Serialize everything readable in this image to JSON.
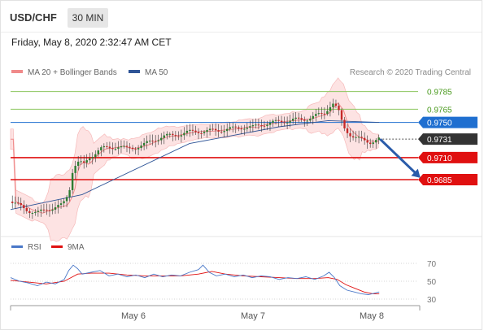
{
  "header": {
    "symbol": "USD/CHF",
    "timeframe": "30 MIN"
  },
  "datetime": "Friday, May 8, 2020 2:32:47 AM CET",
  "legend": [
    {
      "label": "MA 20 + Bollinger Bands",
      "color": "#f08a8a"
    },
    {
      "label": "MA 50",
      "color": "#2f5597"
    }
  ],
  "credit": "Research © 2020 Trading Central",
  "colors": {
    "resistance": "#8cc65e",
    "pivot": "#1f6fd0",
    "support": "#e01010",
    "last": "#333333",
    "arrow": "#2a5caa",
    "candle_up": "#2e7d32",
    "candle_down": "#c62828",
    "rsi": "#4a78c8",
    "rsi_ma": "#e01010"
  },
  "chart_data": [
    {
      "type": "candlestick",
      "series": [
        {
          "name": "USD/CHF"
        },
        {
          "name": "MA 20 + Bollinger Bands"
        },
        {
          "name": "MA 50"
        }
      ],
      "x_tick_labels": [
        "May 6",
        "May 7",
        "May 8"
      ],
      "ylim": [
        0.9637,
        0.9793
      ],
      "levels": [
        {
          "label": "0.9785",
          "value": 0.9785,
          "kind": "resistance"
        },
        {
          "label": "0.9765",
          "value": 0.9765,
          "kind": "resistance"
        },
        {
          "label": "0.9750",
          "value": 0.975,
          "kind": "pivot"
        },
        {
          "label": "0.9731",
          "value": 0.9731,
          "kind": "last"
        },
        {
          "label": "0.9710",
          "value": 0.971,
          "kind": "support"
        },
        {
          "label": "0.9685",
          "value": 0.9685,
          "kind": "support"
        }
      ],
      "price_path": [
        [
          0,
          0.966
        ],
        [
          10,
          0.9655
        ],
        [
          20,
          0.965
        ],
        [
          30,
          0.9647
        ],
        [
          40,
          0.9651
        ],
        [
          50,
          0.9654
        ],
        [
          58,
          0.9656
        ],
        [
          62,
          0.9663
        ],
        [
          66,
          0.9675
        ],
        [
          70,
          0.97
        ],
        [
          76,
          0.9705
        ],
        [
          82,
          0.9702
        ],
        [
          88,
          0.971
        ],
        [
          95,
          0.9716
        ],
        [
          100,
          0.972
        ],
        [
          110,
          0.9721
        ],
        [
          120,
          0.9723
        ],
        [
          130,
          0.972
        ],
        [
          140,
          0.9722
        ],
        [
          150,
          0.9725
        ],
        [
          160,
          0.973
        ],
        [
          170,
          0.9734
        ],
        [
          180,
          0.9735
        ],
        [
          190,
          0.9737
        ],
        [
          200,
          0.9739
        ],
        [
          210,
          0.974
        ],
        [
          220,
          0.974
        ],
        [
          230,
          0.9741
        ],
        [
          240,
          0.9742
        ],
        [
          250,
          0.9743
        ],
        [
          260,
          0.9745
        ],
        [
          270,
          0.9744
        ],
        [
          280,
          0.9748
        ],
        [
          290,
          0.9749
        ],
        [
          300,
          0.9751
        ],
        [
          310,
          0.9752
        ],
        [
          320,
          0.9753
        ],
        [
          330,
          0.9754
        ],
        [
          340,
          0.9757
        ],
        [
          350,
          0.976
        ],
        [
          356,
          0.9768
        ],
        [
          360,
          0.9772
        ],
        [
          366,
          0.9764
        ],
        [
          372,
          0.9745
        ],
        [
          378,
          0.9738
        ],
        [
          384,
          0.9733
        ],
        [
          390,
          0.9731
        ],
        [
          396,
          0.9729
        ],
        [
          402,
          0.9728
        ],
        [
          408,
          0.973
        ],
        [
          412,
          0.9731
        ]
      ],
      "ma50_path": [
        [
          0,
          0.9651
        ],
        [
          80,
          0.9668
        ],
        [
          200,
          0.9726
        ],
        [
          300,
          0.9745
        ],
        [
          355,
          0.9752
        ],
        [
          412,
          0.975
        ]
      ],
      "forecast_arrow": {
        "from": [
          413,
          0.9731
        ],
        "to": [
          458,
          0.9687
        ]
      }
    },
    {
      "type": "line",
      "series": [
        {
          "name": "RSI",
          "color": "#4a78c8"
        },
        {
          "name": "9MA",
          "color": "#e01010"
        }
      ],
      "y_ticks": [
        70,
        50,
        30
      ],
      "ylim": [
        20,
        80
      ],
      "rsi_path": [
        [
          0,
          54
        ],
        [
          10,
          50
        ],
        [
          20,
          48
        ],
        [
          30,
          45
        ],
        [
          40,
          49
        ],
        [
          50,
          47
        ],
        [
          60,
          52
        ],
        [
          65,
          62
        ],
        [
          70,
          68
        ],
        [
          75,
          64
        ],
        [
          80,
          58
        ],
        [
          90,
          60
        ],
        [
          100,
          62
        ],
        [
          110,
          56
        ],
        [
          120,
          58
        ],
        [
          130,
          55
        ],
        [
          140,
          57
        ],
        [
          150,
          54
        ],
        [
          160,
          58
        ],
        [
          170,
          55
        ],
        [
          180,
          57
        ],
        [
          190,
          56
        ],
        [
          200,
          60
        ],
        [
          210,
          63
        ],
        [
          215,
          68
        ],
        [
          222,
          60
        ],
        [
          230,
          56
        ],
        [
          240,
          58
        ],
        [
          250,
          55
        ],
        [
          260,
          57
        ],
        [
          270,
          54
        ],
        [
          280,
          56
        ],
        [
          290,
          55
        ],
        [
          300,
          52
        ],
        [
          310,
          54
        ],
        [
          320,
          53
        ],
        [
          330,
          55
        ],
        [
          340,
          52
        ],
        [
          350,
          56
        ],
        [
          356,
          60
        ],
        [
          362,
          54
        ],
        [
          368,
          45
        ],
        [
          376,
          40
        ],
        [
          384,
          38
        ],
        [
          392,
          36
        ],
        [
          400,
          35
        ],
        [
          408,
          37
        ],
        [
          412,
          38
        ]
      ],
      "rsi_ma_path": [
        [
          0,
          51
        ],
        [
          20,
          49
        ],
        [
          40,
          47
        ],
        [
          60,
          50
        ],
        [
          75,
          58
        ],
        [
          90,
          59
        ],
        [
          110,
          59
        ],
        [
          130,
          57
        ],
        [
          150,
          56
        ],
        [
          170,
          56
        ],
        [
          190,
          56
        ],
        [
          210,
          58
        ],
        [
          225,
          61
        ],
        [
          240,
          58
        ],
        [
          260,
          56
        ],
        [
          280,
          55
        ],
        [
          300,
          54
        ],
        [
          320,
          53
        ],
        [
          340,
          53
        ],
        [
          355,
          54
        ],
        [
          365,
          52
        ],
        [
          375,
          46
        ],
        [
          385,
          42
        ],
        [
          395,
          38
        ],
        [
          405,
          36
        ],
        [
          412,
          36
        ]
      ]
    }
  ]
}
